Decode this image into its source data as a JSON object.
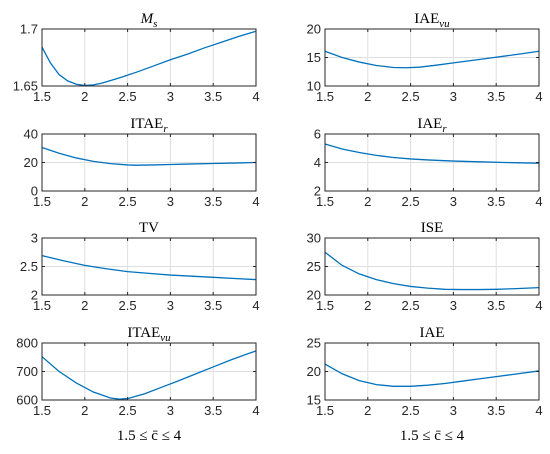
{
  "chart_data": [
    {
      "type": "line",
      "title": "M",
      "title_sub": "s",
      "title_italic": true,
      "xlabel": "",
      "xlim": [
        1.5,
        4
      ],
      "ylim": [
        1.65,
        1.7
      ],
      "xticks": [
        "1.5",
        "2",
        "2.5",
        "3",
        "3.5",
        "4"
      ],
      "yticks": [
        "1.65",
        "1.7"
      ],
      "grid": true,
      "x": [
        1.5,
        1.6,
        1.7,
        1.8,
        1.9,
        2.0,
        2.1,
        2.2,
        2.4,
        2.6,
        2.8,
        3.0,
        3.2,
        3.4,
        3.6,
        3.8,
        4.0
      ],
      "y": [
        1.684,
        1.67,
        1.66,
        1.6545,
        1.6515,
        1.6505,
        1.651,
        1.6525,
        1.657,
        1.662,
        1.6675,
        1.673,
        1.678,
        1.6835,
        1.6885,
        1.6935,
        1.698
      ]
    },
    {
      "type": "line",
      "title": "IAE",
      "title_sub": "vu",
      "title_italic": false,
      "xlabel": "",
      "xlim": [
        1.5,
        4
      ],
      "ylim": [
        10,
        20
      ],
      "xticks": [
        "1.5",
        "2",
        "2.5",
        "3",
        "3.5",
        "4"
      ],
      "yticks": [
        "10",
        "15",
        "20"
      ],
      "grid": true,
      "x": [
        1.5,
        1.7,
        1.9,
        2.1,
        2.3,
        2.45,
        2.6,
        2.8,
        3.0,
        3.2,
        3.4,
        3.6,
        3.8,
        4.0
      ],
      "y": [
        16.1,
        15.0,
        14.2,
        13.6,
        13.25,
        13.2,
        13.3,
        13.65,
        14.05,
        14.45,
        14.85,
        15.25,
        15.65,
        16.1
      ]
    },
    {
      "type": "line",
      "title": "ITAE",
      "title_sub": "r",
      "title_italic": false,
      "xlabel": "",
      "xlim": [
        1.5,
        4
      ],
      "ylim": [
        0,
        40
      ],
      "xticks": [
        "1.5",
        "2",
        "2.5",
        "3",
        "3.5",
        "4"
      ],
      "yticks": [
        "0",
        "20",
        "40"
      ],
      "grid": true,
      "x": [
        1.5,
        1.7,
        1.9,
        2.1,
        2.3,
        2.5,
        2.6,
        2.8,
        3.0,
        3.2,
        3.5,
        3.8,
        4.0
      ],
      "y": [
        30.5,
        26.5,
        23.2,
        20.8,
        19.2,
        18.3,
        18.1,
        18.3,
        18.6,
        18.9,
        19.3,
        19.7,
        20.0
      ]
    },
    {
      "type": "line",
      "title": "IAE",
      "title_sub": "r",
      "title_italic": false,
      "xlabel": "",
      "xlim": [
        1.5,
        4
      ],
      "ylim": [
        2,
        6
      ],
      "xticks": [
        "1.5",
        "2",
        "2.5",
        "3",
        "3.5",
        "4"
      ],
      "yticks": [
        "2",
        "4",
        "6"
      ],
      "grid": true,
      "x": [
        1.5,
        1.7,
        1.9,
        2.1,
        2.3,
        2.5,
        2.7,
        3.0,
        3.3,
        3.6,
        4.0
      ],
      "y": [
        5.3,
        4.95,
        4.7,
        4.5,
        4.35,
        4.25,
        4.18,
        4.1,
        4.05,
        4.0,
        3.95
      ]
    },
    {
      "type": "line",
      "title": "TV",
      "title_sub": "",
      "title_italic": false,
      "xlabel": "",
      "xlim": [
        1.5,
        4
      ],
      "ylim": [
        2,
        3
      ],
      "xticks": [
        "1.5",
        "2",
        "2.5",
        "3",
        "3.5",
        "4"
      ],
      "yticks": [
        "2",
        "2.5",
        "3"
      ],
      "grid": true,
      "x": [
        1.5,
        1.75,
        2.0,
        2.25,
        2.5,
        2.75,
        3.0,
        3.25,
        3.5,
        3.75,
        4.0
      ],
      "y": [
        2.69,
        2.6,
        2.52,
        2.46,
        2.41,
        2.38,
        2.35,
        2.33,
        2.31,
        2.29,
        2.27
      ]
    },
    {
      "type": "line",
      "title": "ISE",
      "title_sub": "",
      "title_italic": false,
      "xlabel": "",
      "xlim": [
        1.5,
        4
      ],
      "ylim": [
        20,
        30
      ],
      "xticks": [
        "1.5",
        "2",
        "2.5",
        "3",
        "3.5",
        "4"
      ],
      "yticks": [
        "20",
        "25",
        "30"
      ],
      "grid": true,
      "x": [
        1.5,
        1.7,
        1.9,
        2.1,
        2.3,
        2.5,
        2.7,
        2.9,
        3.1,
        3.3,
        3.5,
        3.7,
        4.0
      ],
      "y": [
        27.5,
        25.2,
        23.7,
        22.7,
        22.0,
        21.5,
        21.2,
        21.0,
        20.95,
        20.95,
        21.0,
        21.1,
        21.3
      ]
    },
    {
      "type": "line",
      "title": "ITAE",
      "title_sub": "vu",
      "title_italic": false,
      "xlabel": "1.5 ≤ c̄ ≤ 4",
      "xlim": [
        1.5,
        4
      ],
      "ylim": [
        600,
        800
      ],
      "xticks": [
        "1.5",
        "2",
        "2.5",
        "3",
        "3.5",
        "4"
      ],
      "yticks": [
        "600",
        "700",
        "800"
      ],
      "grid": true,
      "x": [
        1.5,
        1.7,
        1.9,
        2.1,
        2.3,
        2.4,
        2.5,
        2.7,
        2.9,
        3.1,
        3.3,
        3.5,
        3.7,
        3.9,
        4.0
      ],
      "y": [
        752,
        700,
        660,
        628,
        607,
        603,
        605,
        622,
        645,
        668,
        692,
        716,
        740,
        762,
        772
      ]
    },
    {
      "type": "line",
      "title": "IAE",
      "title_sub": "",
      "title_italic": false,
      "xlabel": "1.5 ≤ c̄ ≤ 4",
      "xlim": [
        1.5,
        4
      ],
      "ylim": [
        15,
        25
      ],
      "xticks": [
        "1.5",
        "2",
        "2.5",
        "3",
        "3.5",
        "4"
      ],
      "yticks": [
        "15",
        "20",
        "25"
      ],
      "grid": true,
      "x": [
        1.5,
        1.7,
        1.9,
        2.1,
        2.3,
        2.5,
        2.7,
        2.9,
        3.1,
        3.3,
        3.5,
        3.7,
        4.0
      ],
      "y": [
        21.3,
        19.6,
        18.4,
        17.7,
        17.4,
        17.4,
        17.6,
        17.9,
        18.3,
        18.7,
        19.1,
        19.5,
        20.1
      ]
    }
  ]
}
